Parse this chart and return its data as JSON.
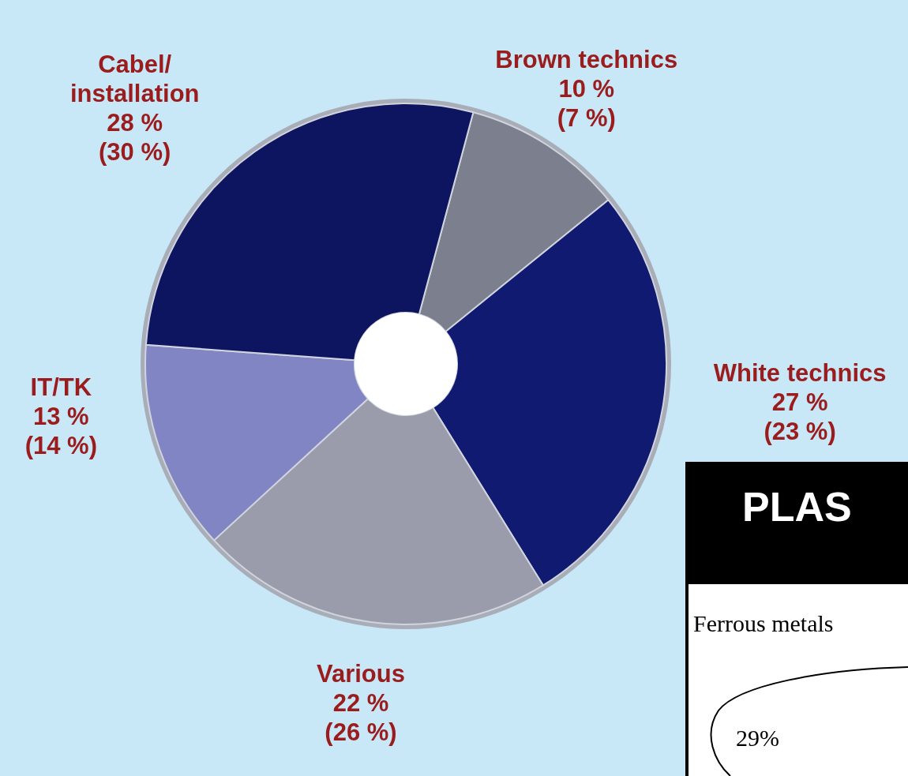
{
  "chart_data": {
    "type": "donut",
    "categories": [
      "Brown technics",
      "White technics",
      "Various",
      "IT/TK",
      "Cabel/\ninstallation"
    ],
    "values": [
      10,
      27,
      22,
      13,
      28
    ],
    "colors": [
      "#7c7f8e",
      "#101a70",
      "#9a9cac",
      "#8185c4",
      "#0d1560"
    ],
    "value_labels": [
      "10 %\n(7 %)",
      "27 %\n(23 %)",
      "22 %\n(26 %)",
      "13 %\n(14 %)",
      "28 %\n(30 %)"
    ],
    "annotations": [
      "PLAS",
      "Ferrous metals",
      "29%"
    ],
    "legend": false
  }
}
